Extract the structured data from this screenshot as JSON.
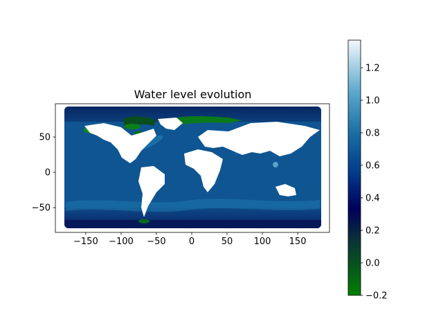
{
  "chart_data": {
    "type": "heatmap",
    "title": "Water level evolution",
    "xlabel": "",
    "ylabel": "",
    "xlim": [
      -193,
      195
    ],
    "ylim": [
      -85,
      97
    ],
    "x_ticks": [
      -150,
      -100,
      -50,
      0,
      50,
      100,
      150
    ],
    "x_tick_labels": [
      "−150",
      "−100",
      "−50",
      "0",
      "50",
      "100",
      "150"
    ],
    "y_ticks": [
      -50,
      0,
      50
    ],
    "y_tick_labels": [
      "−50",
      "0",
      "50"
    ],
    "data_extent": {
      "lon": [
        -180,
        180
      ],
      "lat": [
        -80,
        90
      ]
    },
    "colorbar": {
      "range": [
        -0.2,
        1.37
      ],
      "ticks": [
        -0.2,
        0.0,
        0.2,
        0.4,
        0.6,
        0.8,
        1.0,
        1.2
      ],
      "tick_labels": [
        "−0.2",
        "0.0",
        "0.2",
        "0.4",
        "0.6",
        "0.8",
        "1.0",
        "1.2"
      ],
      "colormap": [
        {
          "value": -0.2,
          "color": "#008000"
        },
        {
          "value": 0.15,
          "color": "#0a2f3a"
        },
        {
          "value": 0.33,
          "color": "#00005a"
        },
        {
          "value": 0.55,
          "color": "#003a8a"
        },
        {
          "value": 0.8,
          "color": "#1a6fa4"
        },
        {
          "value": 1.05,
          "color": "#5aa8cc"
        },
        {
          "value": 1.37,
          "color": "#f2f8fc"
        }
      ]
    },
    "field": {
      "ocean_typical_value": 0.6,
      "arctic_value": 0.33,
      "southern_ocean_value": 0.33,
      "coastal_low_value": -0.2,
      "land_color": "#ffffff"
    }
  }
}
